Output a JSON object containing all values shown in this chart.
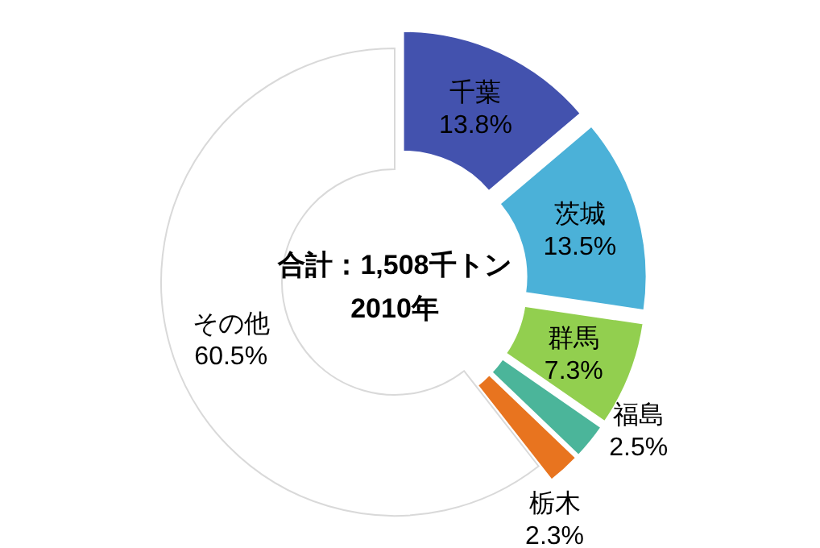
{
  "chart_data": {
    "type": "donut",
    "categories": [
      "千葉",
      "茨城",
      "群馬",
      "福島",
      "栃木",
      "その他"
    ],
    "values": [
      13.8,
      13.5,
      7.3,
      2.5,
      2.3,
      60.5
    ],
    "colors": [
      "#4352ae",
      "#4bb1d8",
      "#92cf4f",
      "#4bb59a",
      "#e8741f",
      "#ffffff"
    ],
    "value_labels": [
      "13.8%",
      "13.5%",
      "7.3%",
      "2.5%",
      "2.3%",
      "60.5%"
    ],
    "annotations": [
      "合計：1,508千トン",
      "2010年"
    ]
  }
}
